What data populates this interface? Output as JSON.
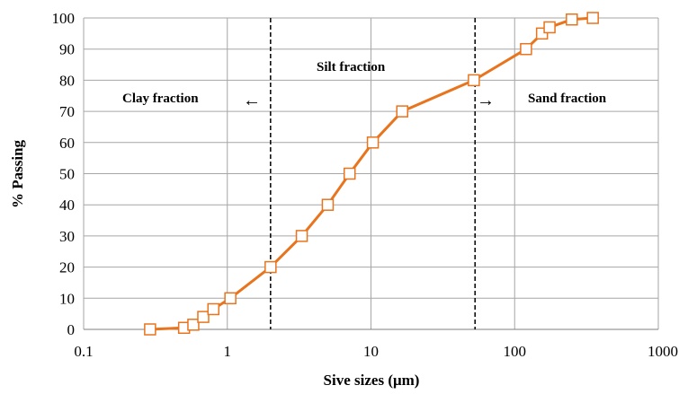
{
  "chart_data": {
    "type": "line",
    "title": "",
    "xlabel": "Sive sizes (μm)",
    "ylabel": "% Passing",
    "x_scale": "log",
    "xlim": [
      0.1,
      1000
    ],
    "ylim": [
      0,
      100
    ],
    "x_ticks": [
      "0.1",
      "1",
      "10",
      "100",
      "1000"
    ],
    "y_ticks": [
      "0",
      "10",
      "20",
      "30",
      "40",
      "50",
      "60",
      "70",
      "80",
      "90",
      "100"
    ],
    "grid": true,
    "legend": "none",
    "series": [
      {
        "color": "#E8741E",
        "marker": "open-square",
        "x": [
          0.29,
          0.5,
          0.58,
          0.68,
          0.8,
          1.05,
          2.0,
          3.3,
          5.0,
          7.1,
          10.3,
          16.5,
          52.0,
          120.0,
          155.0,
          175.0,
          250.0,
          350.0
        ],
        "y": [
          0,
          0.5,
          1.5,
          4,
          6.5,
          10,
          20,
          30,
          40,
          50,
          60,
          70,
          80,
          90,
          95,
          97,
          99.5,
          100
        ]
      }
    ],
    "reference_lines": [
      {
        "axis": "x",
        "value": 2.0,
        "style": "dashed"
      },
      {
        "axis": "x",
        "value": 53.0,
        "style": "dashed"
      }
    ],
    "annotations": [
      {
        "text": "Clay fraction",
        "arrow": "←"
      },
      {
        "text": "Silt fraction"
      },
      {
        "text": "Sand fraction",
        "arrow": "→"
      }
    ]
  }
}
